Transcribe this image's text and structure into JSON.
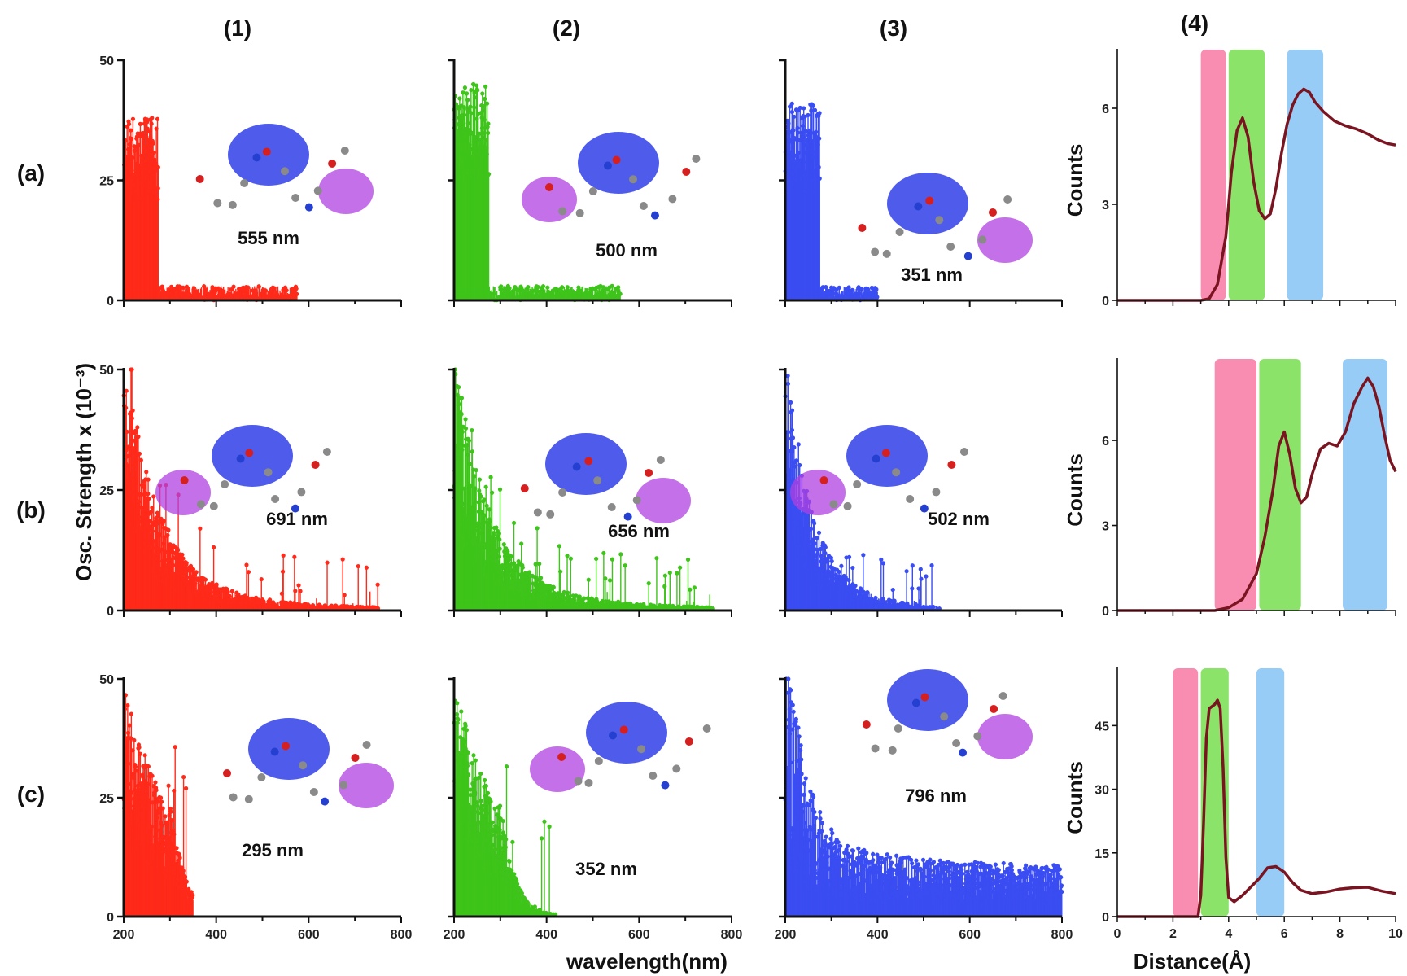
{
  "column_labels": [
    "(1)",
    "(2)",
    "(3)",
    "(4)"
  ],
  "row_labels": [
    "(a)",
    "(b)",
    "(c)"
  ],
  "spectrum_ylabel": "Osc. Strength x (10⁻³)",
  "spectrum_xlabel": "wavelength(nm)",
  "rdf_ylabel": "Counts",
  "rdf_xlabel": "Distance(Å)",
  "colors": {
    "series_1": "#ff2a1a",
    "series_2": "#3ec41a",
    "series_3": "#3a4df2",
    "rdf_curve": "#7a1420",
    "band_pink": "#f77fa8",
    "band_green": "#7fe05a",
    "band_blue": "#8cc6f5",
    "orbital_blue": "#3040e8",
    "orbital_magenta": "#b040e0"
  },
  "chart_data": [
    {
      "id": "a1",
      "type": "bar",
      "series_color": "series_1",
      "xlim": [
        200,
        800
      ],
      "ylim": [
        0,
        50
      ],
      "xticks": [],
      "yticks": [
        0,
        25,
        50
      ],
      "ytick_labels": [
        "0",
        "25",
        "50"
      ],
      "decay": "short",
      "cut": 575,
      "peak": 38,
      "annotation": "555 nm"
    },
    {
      "id": "a2",
      "type": "bar",
      "series_color": "series_2",
      "xlim": [
        200,
        800
      ],
      "ylim": [
        0,
        50
      ],
      "xticks": [],
      "yticks": [
        0,
        25,
        50
      ],
      "ytick_labels": [
        "",
        "",
        ""
      ],
      "decay": "short",
      "cut": 560,
      "peak": 45,
      "annotation": "500 nm"
    },
    {
      "id": "a3",
      "type": "bar",
      "series_color": "series_3",
      "xlim": [
        200,
        800
      ],
      "ylim": [
        0,
        50
      ],
      "xticks": [],
      "yticks": [
        0,
        25,
        50
      ],
      "ytick_labels": [
        "",
        "",
        ""
      ],
      "decay": "short",
      "cut": 400,
      "peak": 41,
      "annotation": "351 nm"
    },
    {
      "id": "b1",
      "type": "bar",
      "series_color": "series_1",
      "xlim": [
        200,
        800
      ],
      "ylim": [
        0,
        50
      ],
      "xticks": [],
      "yticks": [
        0,
        25,
        50
      ],
      "ytick_labels": [
        "0",
        "25",
        "50"
      ],
      "decay": "long",
      "cut": 750,
      "peak": 49,
      "annotation": "691 nm"
    },
    {
      "id": "b2",
      "type": "bar",
      "series_color": "series_2",
      "xlim": [
        200,
        800
      ],
      "ylim": [
        0,
        50
      ],
      "xticks": [],
      "yticks": [
        0,
        25,
        50
      ],
      "ytick_labels": [
        "",
        "",
        ""
      ],
      "decay": "long",
      "cut": 760,
      "peak": 50,
      "annotation": "656 nm"
    },
    {
      "id": "b3",
      "type": "bar",
      "series_color": "series_3",
      "xlim": [
        200,
        800
      ],
      "ylim": [
        0,
        50
      ],
      "xticks": [],
      "yticks": [
        0,
        25,
        50
      ],
      "ytick_labels": [
        "",
        "",
        ""
      ],
      "decay": "medium",
      "cut": 535,
      "peak": 50,
      "annotation": "502 nm"
    },
    {
      "id": "c1",
      "type": "bar",
      "series_color": "series_1",
      "xlim": [
        200,
        800
      ],
      "ylim": [
        0,
        50
      ],
      "xticks": [
        200,
        400,
        600,
        800
      ],
      "yticks": [
        0,
        25,
        50
      ],
      "ytick_labels": [
        "0",
        "25",
        "50"
      ],
      "decay": "steep",
      "cut": 350,
      "peak": 50,
      "annotation": "295 nm"
    },
    {
      "id": "c2",
      "type": "bar",
      "series_color": "series_2",
      "xlim": [
        200,
        800
      ],
      "ylim": [
        0,
        50
      ],
      "xticks": [
        200,
        400,
        600,
        800
      ],
      "yticks": [
        0,
        25,
        50
      ],
      "ytick_labels": [
        "",
        "",
        ""
      ],
      "decay": "steep",
      "cut": 420,
      "peak": 50,
      "annotation": "352 nm"
    },
    {
      "id": "c3",
      "type": "bar",
      "series_color": "series_3",
      "xlim": [
        200,
        800
      ],
      "ylim": [
        0,
        50
      ],
      "xticks": [
        200,
        400,
        600,
        800
      ],
      "yticks": [
        0,
        25,
        50
      ],
      "ytick_labels": [
        "",
        "",
        ""
      ],
      "decay": "flat",
      "cut": 800,
      "peak": 50,
      "annotation": "796 nm"
    },
    {
      "id": "a4",
      "type": "line",
      "xlim": [
        0,
        10
      ],
      "ylim": [
        0,
        7.5
      ],
      "yticks": [
        0,
        3,
        6
      ],
      "ytick_labels": [
        "0",
        "3",
        "6"
      ],
      "xticks": [],
      "bands": [
        [
          3.0,
          3.9,
          "band_pink"
        ],
        [
          4.0,
          5.3,
          "band_green"
        ],
        [
          6.1,
          7.4,
          "band_blue"
        ]
      ],
      "x": [
        0,
        3.0,
        3.3,
        3.6,
        3.9,
        4.1,
        4.3,
        4.5,
        4.7,
        4.9,
        5.1,
        5.3,
        5.5,
        5.7,
        5.9,
        6.1,
        6.3,
        6.5,
        6.7,
        6.9,
        7.1,
        7.4,
        7.8,
        8.2,
        8.6,
        9.0,
        9.4,
        9.7,
        10.0
      ],
      "y": [
        0,
        0,
        0.05,
        0.5,
        2.0,
        4.0,
        5.3,
        5.7,
        5.1,
        3.7,
        2.8,
        2.55,
        2.7,
        3.5,
        4.6,
        5.5,
        6.1,
        6.45,
        6.6,
        6.5,
        6.2,
        5.9,
        5.6,
        5.45,
        5.35,
        5.2,
        5.0,
        4.9,
        4.85
      ]
    },
    {
      "id": "b4",
      "type": "line",
      "xlim": [
        0,
        10
      ],
      "ylim": [
        0,
        8.5
      ],
      "yticks": [
        0,
        3,
        6
      ],
      "ytick_labels": [
        "0",
        "3",
        "6"
      ],
      "xticks": [],
      "bands": [
        [
          3.5,
          5.0,
          "band_pink"
        ],
        [
          5.1,
          6.6,
          "band_green"
        ],
        [
          8.1,
          9.7,
          "band_blue"
        ]
      ],
      "x": [
        0,
        3.5,
        4.0,
        4.5,
        5.0,
        5.3,
        5.6,
        5.8,
        6.0,
        6.2,
        6.4,
        6.6,
        6.8,
        7.0,
        7.3,
        7.6,
        7.9,
        8.2,
        8.5,
        8.8,
        9.0,
        9.2,
        9.4,
        9.6,
        9.8,
        10.0
      ],
      "y": [
        0,
        0,
        0.1,
        0.4,
        1.3,
        2.6,
        4.3,
        5.8,
        6.3,
        5.5,
        4.3,
        3.8,
        4.0,
        4.8,
        5.7,
        5.9,
        5.8,
        6.3,
        7.3,
        7.9,
        8.2,
        7.9,
        7.2,
        6.2,
        5.3,
        4.9
      ]
    },
    {
      "id": "c4",
      "type": "line",
      "xlim": [
        0,
        10
      ],
      "ylim": [
        0,
        56
      ],
      "yticks": [
        0,
        15,
        30,
        45
      ],
      "ytick_labels": [
        "0",
        "15",
        "30",
        "45"
      ],
      "xticks": [
        0,
        2,
        4,
        6,
        8,
        10
      ],
      "bands": [
        [
          2.0,
          2.9,
          "band_pink"
        ],
        [
          3.0,
          4.0,
          "band_green"
        ],
        [
          5.0,
          6.0,
          "band_blue"
        ]
      ],
      "x": [
        0,
        2.9,
        3.0,
        3.1,
        3.2,
        3.3,
        3.5,
        3.6,
        3.7,
        3.8,
        3.9,
        4.0,
        4.2,
        4.5,
        4.8,
        5.1,
        5.4,
        5.7,
        6.0,
        6.3,
        6.6,
        7.0,
        7.5,
        8.0,
        8.5,
        9.0,
        9.5,
        10.0
      ],
      "y": [
        0,
        0,
        5,
        22,
        42,
        49,
        50,
        51,
        49,
        35,
        14,
        4.5,
        3.5,
        5,
        7,
        9,
        11.5,
        11.8,
        10.5,
        8,
        6.2,
        5.4,
        5.8,
        6.5,
        6.8,
        6.9,
        6.0,
        5.4
      ]
    }
  ],
  "xtick_labels_spectrum": [
    "200",
    "400",
    "600",
    "800"
  ],
  "xtick_labels_rdf": [
    "0",
    "2",
    "4",
    "6",
    "8",
    "10"
  ]
}
